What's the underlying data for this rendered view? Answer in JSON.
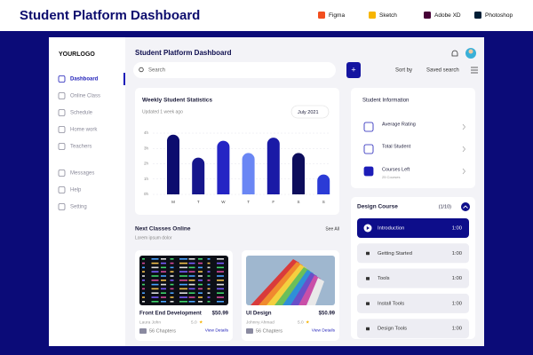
{
  "header": {
    "title": "Student Platform Dashboard",
    "tools": [
      "Figma",
      "Sketch",
      "Adobe XD",
      "Photoshop"
    ]
  },
  "sidebar": {
    "logo": "YOURLOGO",
    "menu": [
      "Dashboard",
      "Online Class",
      "Schedule",
      "Home work",
      "Teachers"
    ],
    "menu2": [
      "Messages",
      "Help",
      "Setting"
    ]
  },
  "topbar": {
    "title": "Student Platform Dashboard",
    "search": "Search",
    "sort": "Sort by",
    "saved": "Saved search"
  },
  "chart_data": {
    "type": "bar",
    "title": "Weekly Student Statistics",
    "subtitle": "Updated 1 week ago",
    "period": "July 2021",
    "categories": [
      "M",
      "T",
      "W",
      "T",
      "F",
      "S",
      "S"
    ],
    "values": [
      3.9,
      2.4,
      3.5,
      2.7,
      3.7,
      2.7,
      1.3
    ],
    "colors": [
      "#0c0c6e",
      "#16168c",
      "#2424c4",
      "#6a86f4",
      "#1a1aa6",
      "#0d0d5c",
      "#2b3bd6"
    ],
    "ylim": [
      0,
      4
    ],
    "yticks": [
      {
        "value": 0,
        "label": "0h"
      },
      {
        "value": 1,
        "label": "1h"
      },
      {
        "value": 2,
        "label": "2h"
      },
      {
        "value": 3,
        "label": "3h"
      },
      {
        "value": 4,
        "label": "4h"
      }
    ],
    "grid": true
  },
  "classes": {
    "title": "Next Classes Online",
    "subtitle": "Lorem ipsum dolor",
    "link": "See All",
    "cards": [
      {
        "title": "Front End Development",
        "price": "$50.99",
        "author": "Laura John",
        "rating": "5.0",
        "chapters": "56 Chapters",
        "link": "View Details"
      },
      {
        "title": "UI Design",
        "price": "$50.99",
        "author": "Johnny Ahmad",
        "rating": "5.0",
        "chapters": "56 Chapters",
        "link": "View Details"
      }
    ]
  },
  "student_info": {
    "title": "Student Information",
    "items": [
      {
        "label": "Average Rating"
      },
      {
        "label": "Total Student"
      },
      {
        "label": "Courses Left",
        "detail": "25 Courses"
      }
    ]
  },
  "course": {
    "title": "Design Course",
    "progress": "(1/10)",
    "lessons": [
      {
        "name": "Introduction",
        "time": "1:00"
      },
      {
        "name": "Getting Started",
        "time": "1:00"
      },
      {
        "name": "Tools",
        "time": "1:00"
      },
      {
        "name": "Install Tools",
        "time": "1:00"
      },
      {
        "name": "Design Tools",
        "time": "1:00"
      }
    ]
  }
}
